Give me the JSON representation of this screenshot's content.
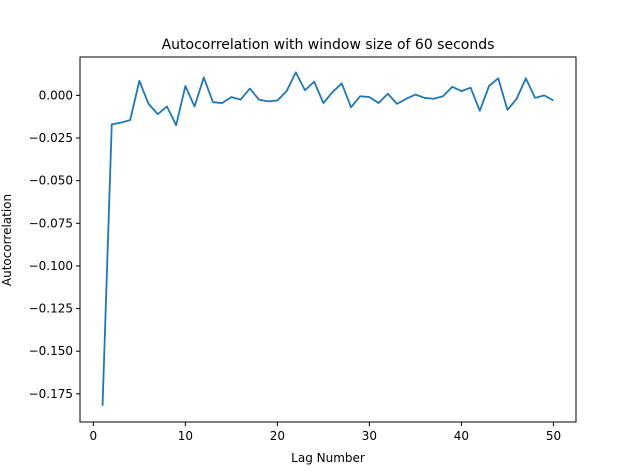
{
  "chart_data": {
    "type": "line",
    "title": "Autocorrelation with window size of 60 seconds",
    "xlabel": "Lag Number",
    "ylabel": "Autocorrelation",
    "xlim": [
      -1.45,
      52.45
    ],
    "ylim": [
      -0.1915,
      0.0225
    ],
    "xticks": [
      0,
      10,
      20,
      30,
      40,
      50
    ],
    "xtick_labels": [
      "0",
      "10",
      "20",
      "30",
      "40",
      "50"
    ],
    "yticks": [
      0.0,
      -0.025,
      -0.05,
      -0.075,
      -0.1,
      -0.125,
      -0.15,
      -0.175
    ],
    "ytick_labels": [
      "0.000",
      "−0.025",
      "−0.050",
      "−0.075",
      "−0.100",
      "−0.125",
      "−0.150",
      "−0.175"
    ],
    "grid": false,
    "legend": false,
    "colors": {
      "line": "#1f77b4"
    },
    "series": [
      {
        "x": [
          1,
          2,
          3,
          4,
          5,
          6,
          7,
          8,
          9,
          10,
          11,
          12,
          13,
          14,
          15,
          16,
          17,
          18,
          19,
          20,
          21,
          22,
          23,
          24,
          25,
          26,
          27,
          28,
          29,
          30,
          31,
          32,
          33,
          34,
          35,
          36,
          37,
          38,
          39,
          40,
          41,
          42,
          43,
          44,
          45,
          46,
          47,
          48,
          49,
          50
        ],
        "values": [
          -0.182,
          -0.017,
          -0.016,
          -0.0145,
          0.0085,
          -0.005,
          -0.011,
          -0.0065,
          -0.0175,
          0.0055,
          -0.0065,
          0.0105,
          -0.004,
          -0.0045,
          -0.001,
          -0.0025,
          0.004,
          -0.0025,
          -0.0035,
          -0.003,
          0.0025,
          0.0135,
          0.003,
          0.008,
          -0.0045,
          0.002,
          0.007,
          -0.007,
          -0.0005,
          -0.001,
          -0.0045,
          0.001,
          -0.005,
          -0.002,
          0.0005,
          -0.0015,
          -0.002,
          -0.0005,
          0.005,
          0.0025,
          0.0045,
          -0.009,
          0.0055,
          0.01,
          -0.0085,
          -0.002,
          0.01,
          -0.0015,
          0.0,
          -0.003
        ]
      }
    ]
  }
}
